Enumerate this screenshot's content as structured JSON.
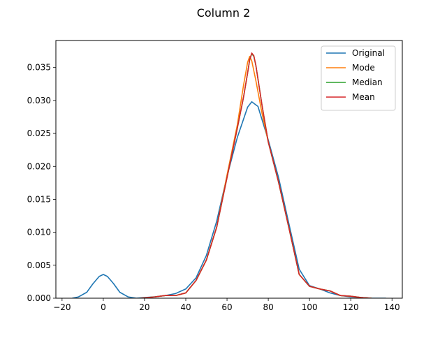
{
  "chart_data": {
    "type": "line",
    "title": "Column 2",
    "xlabel": "",
    "ylabel": "",
    "xlim": [
      -23,
      145
    ],
    "ylim": [
      0,
      0.0391
    ],
    "xticks": [
      -20,
      0,
      20,
      40,
      60,
      80,
      100,
      120,
      140
    ],
    "xtick_labels": [
      "−20",
      "0",
      "20",
      "40",
      "60",
      "80",
      "100",
      "120",
      "140"
    ],
    "yticks": [
      0,
      0.005,
      0.01,
      0.015,
      0.02,
      0.025,
      0.03,
      0.035
    ],
    "ytick_labels": [
      "0.000",
      "0.005",
      "0.010",
      "0.015",
      "0.020",
      "0.025",
      "0.030",
      "0.035"
    ],
    "legend_position": "top-right",
    "grid": false,
    "series": [
      {
        "name": "Original",
        "color": "#1f77b4",
        "points": [
          [
            -15,
            0
          ],
          [
            -12,
            0.0002
          ],
          [
            -8,
            0.0009
          ],
          [
            -5,
            0.0022
          ],
          [
            -2,
            0.0033
          ],
          [
            0,
            0.0036
          ],
          [
            2,
            0.0033
          ],
          [
            5,
            0.0022
          ],
          [
            8,
            0.0009
          ],
          [
            12,
            0.0002
          ],
          [
            16,
            0
          ],
          [
            20,
            0.0001
          ],
          [
            25,
            0.0002
          ],
          [
            30,
            0.0004
          ],
          [
            35,
            0.0007
          ],
          [
            40,
            0.0014
          ],
          [
            45,
            0.0031
          ],
          [
            50,
            0.0065
          ],
          [
            55,
            0.0117
          ],
          [
            60,
            0.0185
          ],
          [
            65,
            0.0244
          ],
          [
            70,
            0.029
          ],
          [
            72,
            0.0298
          ],
          [
            75,
            0.0291
          ],
          [
            80,
            0.024
          ],
          [
            85,
            0.0183
          ],
          [
            90,
            0.0113
          ],
          [
            95,
            0.0044
          ],
          [
            100,
            0.0019
          ],
          [
            105,
            0.0014
          ],
          [
            110,
            0.0008
          ],
          [
            115,
            0.0004
          ],
          [
            120,
            0.0002
          ],
          [
            125,
            0.0001
          ],
          [
            130,
            0
          ],
          [
            137,
            0
          ]
        ]
      },
      {
        "name": "Mode",
        "color": "#ff7f0e",
        "points": [
          [
            18,
            0
          ],
          [
            25,
            0.0002
          ],
          [
            30,
            0.0004
          ],
          [
            35,
            0.0004
          ],
          [
            40,
            0.0008
          ],
          [
            45,
            0.0027
          ],
          [
            50,
            0.0058
          ],
          [
            55,
            0.0108
          ],
          [
            60,
            0.0187
          ],
          [
            65,
            0.0263
          ],
          [
            68,
            0.0323
          ],
          [
            70,
            0.0358
          ],
          [
            71,
            0.0367
          ],
          [
            72,
            0.036
          ],
          [
            74,
            0.033
          ],
          [
            77,
            0.028
          ],
          [
            80,
            0.0237
          ],
          [
            85,
            0.0176
          ],
          [
            90,
            0.0107
          ],
          [
            95,
            0.0036
          ],
          [
            100,
            0.0018
          ],
          [
            105,
            0.0014
          ],
          [
            110,
            0.0011
          ],
          [
            115,
            0.0004
          ],
          [
            120,
            0.0003
          ],
          [
            125,
            0.0001
          ],
          [
            130,
            0
          ]
        ]
      },
      {
        "name": "Median",
        "color": "#2ca02c",
        "points": [
          [
            18,
            0
          ],
          [
            25,
            0.0002
          ],
          [
            30,
            0.0004
          ],
          [
            35,
            0.0004
          ],
          [
            40,
            0.0008
          ],
          [
            45,
            0.0027
          ],
          [
            50,
            0.0058
          ],
          [
            55,
            0.0108
          ],
          [
            60,
            0.0183
          ],
          [
            65,
            0.0258
          ],
          [
            68,
            0.0305
          ],
          [
            70,
            0.0342
          ],
          [
            71,
            0.0362
          ],
          [
            72,
            0.0371
          ],
          [
            73,
            0.0367
          ],
          [
            74,
            0.0353
          ],
          [
            77,
            0.0292
          ],
          [
            80,
            0.0237
          ],
          [
            85,
            0.0176
          ],
          [
            90,
            0.0107
          ],
          [
            95,
            0.0036
          ],
          [
            100,
            0.0018
          ],
          [
            105,
            0.0014
          ],
          [
            110,
            0.0011
          ],
          [
            115,
            0.0004
          ],
          [
            120,
            0.0003
          ],
          [
            125,
            0.0001
          ],
          [
            130,
            0
          ]
        ]
      },
      {
        "name": "Mean",
        "color": "#d62728",
        "points": [
          [
            18,
            0
          ],
          [
            25,
            0.0002
          ],
          [
            30,
            0.0004
          ],
          [
            35,
            0.0004
          ],
          [
            40,
            0.0008
          ],
          [
            45,
            0.0027
          ],
          [
            50,
            0.0058
          ],
          [
            55,
            0.0108
          ],
          [
            60,
            0.0183
          ],
          [
            65,
            0.0258
          ],
          [
            68,
            0.0305
          ],
          [
            70,
            0.0342
          ],
          [
            71,
            0.0362
          ],
          [
            72,
            0.0372
          ],
          [
            73,
            0.0368
          ],
          [
            74,
            0.0353
          ],
          [
            77,
            0.0292
          ],
          [
            80,
            0.0237
          ],
          [
            85,
            0.0176
          ],
          [
            90,
            0.0107
          ],
          [
            95,
            0.0036
          ],
          [
            100,
            0.0018
          ],
          [
            105,
            0.0014
          ],
          [
            110,
            0.0011
          ],
          [
            115,
            0.0004
          ],
          [
            120,
            0.0003
          ],
          [
            125,
            0.0001
          ],
          [
            130,
            0
          ]
        ]
      }
    ]
  }
}
